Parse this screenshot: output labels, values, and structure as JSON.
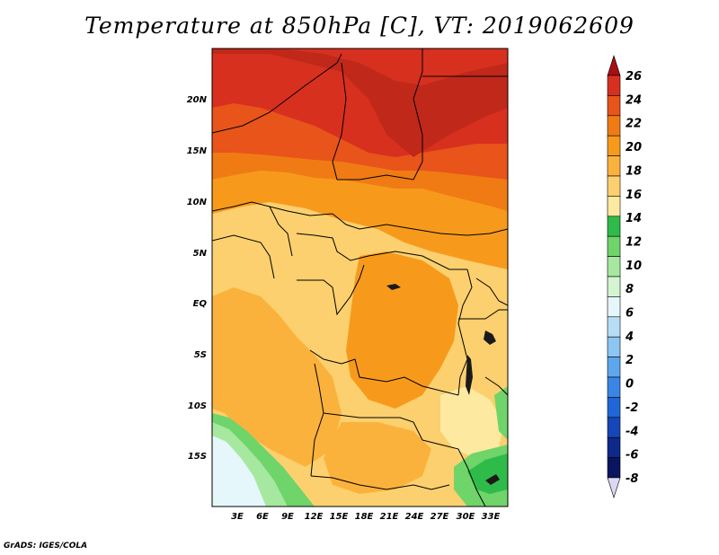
{
  "title": "Temperature at 850hPa [C], VT: 2019062609",
  "credit": "GrADS: IGES/COLA",
  "map": {
    "lon_labels": [
      "3E",
      "6E",
      "9E",
      "12E",
      "15E",
      "18E",
      "21E",
      "24E",
      "27E",
      "30E",
      "33E"
    ],
    "lat_labels": [
      "20N",
      "15N",
      "10N",
      "5N",
      "EQ",
      "5S",
      "10S",
      "15S"
    ]
  },
  "colorbar": {
    "levels": [
      "26",
      "24",
      "22",
      "20",
      "18",
      "16",
      "14",
      "12",
      "10",
      "8",
      "6",
      "4",
      "2",
      "0",
      "-2",
      "-4",
      "-6",
      "-8"
    ],
    "colors": [
      "#a50f15",
      "#d7301f",
      "#e8541a",
      "#f07b14",
      "#f79a1c",
      "#fab23c",
      "#fcd06e",
      "#fee9a0",
      "#2fbb4a",
      "#6fd46a",
      "#a6e8a0",
      "#d4f5d2",
      "#e6f7fb",
      "#b7def6",
      "#8cc6f2",
      "#5ea7ee",
      "#3a86e6",
      "#1f66d8",
      "#1547b8",
      "#0d2a8a",
      "#0a1560",
      "#dcd8f4"
    ]
  }
}
